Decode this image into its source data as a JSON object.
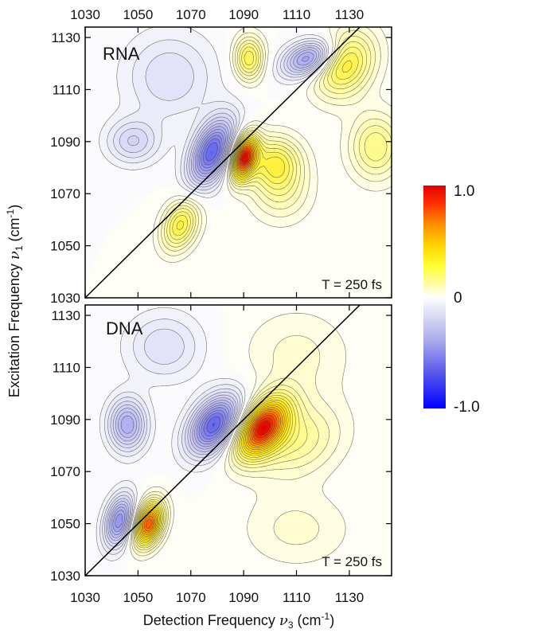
{
  "chart_data": {
    "type": "heatmap",
    "xlabel_main": "Detection Frequency ",
    "xlabel_nu": "ν",
    "xlabel_sub": "3",
    "xlabel_unit": " (cm",
    "xlabel_sup": "-1",
    "xlabel_end": ")",
    "ylabel_main": "Excitation Frequency  ",
    "ylabel_nu": "ν",
    "ylabel_sub": "1",
    "ylabel_unit": " (cm",
    "ylabel_sup": "-1",
    "ylabel_end": ")",
    "xlim": [
      1030,
      1146
    ],
    "ylim": [
      1030,
      1134
    ],
    "x_ticks": [
      "1030",
      "1050",
      "1070",
      "1090",
      "1110",
      "1130"
    ],
    "x_tick_values": [
      1030,
      1050,
      1070,
      1090,
      1110,
      1130
    ],
    "y_ticks": [
      "1030",
      "1050",
      "1070",
      "1090",
      "1110",
      "1130"
    ],
    "y_tick_values": [
      1030,
      1050,
      1070,
      1090,
      1110,
      1130
    ],
    "diagonal": true,
    "colorbar": {
      "max_label": "1.0",
      "zero_label": "0",
      "min_label": "-1.0",
      "range": [
        -1.0,
        1.0
      ]
    },
    "panels": [
      {
        "name": "RNA",
        "annotation": "T = 250 fs",
        "peaks": [
          {
            "x": 1078,
            "y": 1086,
            "amp": -0.7,
            "sx": 6,
            "sy": 9,
            "rho": 0.45
          },
          {
            "x": 1090,
            "y": 1084,
            "amp": 0.95,
            "sx": 3.5,
            "sy": 6,
            "rho": 0.3
          },
          {
            "x": 1115,
            "y": 1122,
            "amp": -0.55,
            "sx": 7,
            "sy": 5,
            "rho": 0.35
          },
          {
            "x": 1128,
            "y": 1120,
            "amp": 0.45,
            "sx": 8,
            "sy": 9,
            "rho": 0.2
          },
          {
            "x": 1048,
            "y": 1090,
            "amp": -0.25,
            "sx": 7,
            "sy": 6,
            "rho": 0.0
          },
          {
            "x": 1066,
            "y": 1058,
            "amp": 0.42,
            "sx": 5,
            "sy": 7,
            "rho": 0.3
          },
          {
            "x": 1102,
            "y": 1082,
            "amp": 0.38,
            "sx": 7,
            "sy": 7,
            "rho": 0.0
          },
          {
            "x": 1092,
            "y": 1122,
            "amp": 0.4,
            "sx": 4,
            "sy": 6,
            "rho": 0.0
          },
          {
            "x": 1140,
            "y": 1088,
            "amp": 0.3,
            "sx": 7,
            "sy": 9,
            "rho": 0.0
          },
          {
            "x": 1062,
            "y": 1115,
            "amp": -0.2,
            "sx": 12,
            "sy": 12,
            "rho": 0.0
          },
          {
            "x": 1104,
            "y": 1070,
            "amp": 0.18,
            "sx": 8,
            "sy": 8,
            "rho": 0.0
          }
        ]
      },
      {
        "name": "DNA",
        "annotation": "T = 250 fs",
        "peaks": [
          {
            "x": 1079,
            "y": 1088,
            "amp": -0.72,
            "sx": 7,
            "sy": 8,
            "rho": 0.4
          },
          {
            "x": 1097,
            "y": 1087,
            "amp": 0.9,
            "sx": 7,
            "sy": 8,
            "rho": 0.45
          },
          {
            "x": 1046,
            "y": 1088,
            "amp": -0.45,
            "sx": 5,
            "sy": 7,
            "rho": 0.0
          },
          {
            "x": 1043,
            "y": 1051,
            "amp": -0.55,
            "sx": 4,
            "sy": 7,
            "rho": 0.3
          },
          {
            "x": 1054,
            "y": 1050,
            "amp": 0.85,
            "sx": 4,
            "sy": 6,
            "rho": 0.3
          },
          {
            "x": 1110,
            "y": 1082,
            "amp": 0.25,
            "sx": 12,
            "sy": 10,
            "rho": 0.2
          },
          {
            "x": 1060,
            "y": 1118,
            "amp": -0.2,
            "sx": 10,
            "sy": 9,
            "rho": 0.0
          },
          {
            "x": 1110,
            "y": 1115,
            "amp": 0.12,
            "sx": 14,
            "sy": 12,
            "rho": 0.0
          },
          {
            "x": 1110,
            "y": 1048,
            "amp": 0.12,
            "sx": 14,
            "sy": 10,
            "rho": 0.0
          }
        ]
      }
    ]
  }
}
